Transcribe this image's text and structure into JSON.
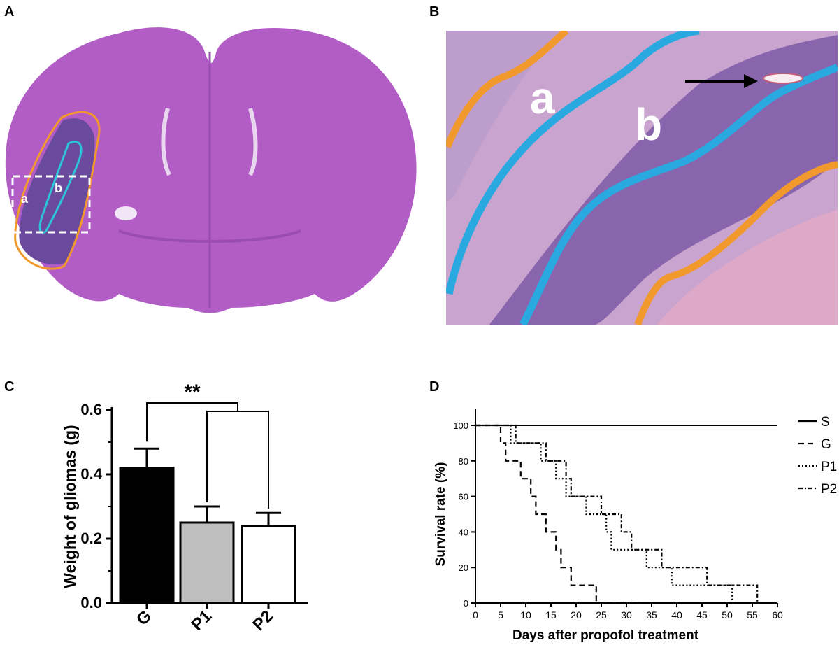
{
  "panels": {
    "a": "A",
    "b": "B",
    "c": "C",
    "d": "D"
  },
  "histology_a": {
    "region_a": "a",
    "region_b": "b"
  },
  "histology_b": {
    "region_a": "a",
    "region_b": "b"
  },
  "colors": {
    "tissue": "#b25cc6",
    "tissue_light": "#c98fd6",
    "tumor": "#6a4a9c",
    "orange": "#f2992e",
    "cyan": "#2ec4d6",
    "blue": "#2aa9e0",
    "bar_g": "#000000",
    "bar_p1": "#bfbfbf",
    "bar_p2": "#ffffff"
  },
  "chart_data": [
    {
      "type": "bar",
      "ylabel": "Weight of gliomas (g)",
      "categories": [
        "G",
        "P1",
        "P2"
      ],
      "values": [
        0.42,
        0.25,
        0.24
      ],
      "errors": [
        0.06,
        0.05,
        0.04
      ],
      "yticks": [
        "0.0",
        "0.2",
        "0.4",
        "0.6"
      ],
      "ylim": [
        0,
        0.6
      ],
      "significance": "**"
    },
    {
      "type": "line",
      "xlabel": "Days after  propofol treatment",
      "ylabel": "Survival rate (%)",
      "xlim": [
        0,
        60
      ],
      "ylim": [
        0,
        100
      ],
      "xticks": [
        "0",
        "5",
        "10",
        "15",
        "20",
        "25",
        "30",
        "35",
        "40",
        "45",
        "50",
        "55",
        "60"
      ],
      "yticks": [
        "0",
        "20",
        "40",
        "60",
        "80",
        "100"
      ],
      "legend_position": "right",
      "series": [
        {
          "name": "S",
          "style": "solid",
          "points": [
            [
              0,
              100
            ],
            [
              60,
              100
            ]
          ]
        },
        {
          "name": "G",
          "style": "dashed",
          "points": [
            [
              0,
              100
            ],
            [
              5,
              100
            ],
            [
              5,
              90
            ],
            [
              6,
              90
            ],
            [
              6,
              80
            ],
            [
              9,
              80
            ],
            [
              9,
              70
            ],
            [
              11,
              70
            ],
            [
              11,
              60
            ],
            [
              12,
              60
            ],
            [
              12,
              50
            ],
            [
              14,
              50
            ],
            [
              14,
              40
            ],
            [
              16,
              40
            ],
            [
              16,
              30
            ],
            [
              17,
              30
            ],
            [
              17,
              20
            ],
            [
              19,
              20
            ],
            [
              19,
              10
            ],
            [
              24,
              10
            ],
            [
              24,
              0
            ],
            [
              33,
              0
            ]
          ]
        },
        {
          "name": "P1",
          "style": "dotted",
          "points": [
            [
              0,
              100
            ],
            [
              7,
              100
            ],
            [
              7,
              90
            ],
            [
              13,
              90
            ],
            [
              13,
              80
            ],
            [
              16,
              80
            ],
            [
              16,
              70
            ],
            [
              18,
              70
            ],
            [
              18,
              60
            ],
            [
              22,
              60
            ],
            [
              22,
              50
            ],
            [
              26,
              50
            ],
            [
              26,
              40
            ],
            [
              27,
              40
            ],
            [
              27,
              30
            ],
            [
              34,
              30
            ],
            [
              34,
              20
            ],
            [
              39,
              20
            ],
            [
              39,
              10
            ],
            [
              51,
              10
            ],
            [
              51,
              0
            ]
          ]
        },
        {
          "name": "P2",
          "style": "dashdot",
          "points": [
            [
              0,
              100
            ],
            [
              8,
              100
            ],
            [
              8,
              90
            ],
            [
              14,
              90
            ],
            [
              14,
              80
            ],
            [
              18,
              80
            ],
            [
              18,
              70
            ],
            [
              19,
              70
            ],
            [
              19,
              60
            ],
            [
              25,
              60
            ],
            [
              25,
              50
            ],
            [
              29,
              50
            ],
            [
              29,
              40
            ],
            [
              31,
              40
            ],
            [
              31,
              30
            ],
            [
              37,
              30
            ],
            [
              37,
              20
            ],
            [
              46,
              20
            ],
            [
              46,
              10
            ],
            [
              56,
              10
            ],
            [
              56,
              0
            ]
          ]
        }
      ]
    }
  ]
}
